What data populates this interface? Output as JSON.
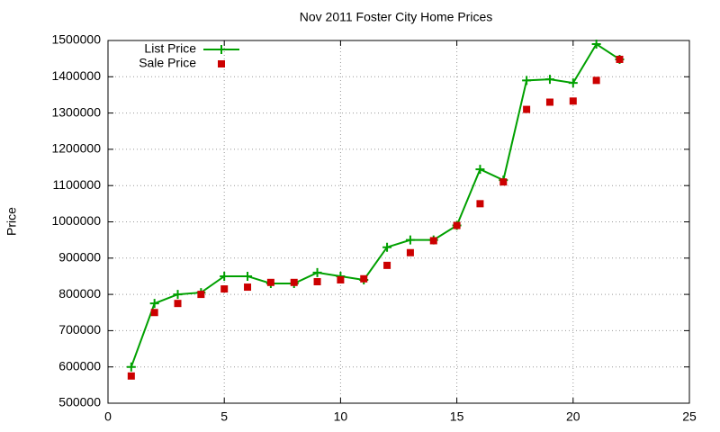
{
  "chart_data": {
    "type": "line",
    "title": "Nov 2011 Foster City Home Prices",
    "y_label": "Price",
    "xlim": [
      0,
      25
    ],
    "xticks": [
      0,
      5,
      10,
      15,
      20,
      25
    ],
    "ylim": [
      500000,
      1500000
    ],
    "yticks": [
      500000,
      600000,
      700000,
      800000,
      900000,
      1000000,
      1100000,
      1200000,
      1300000,
      1400000,
      1500000
    ],
    "grid": true,
    "legend": "top-left",
    "series": [
      {
        "name": "List Price",
        "color": "#00a000",
        "style": "linespoints",
        "x": [
          1,
          2,
          3,
          4,
          5,
          6,
          7,
          8,
          9,
          10,
          11,
          12,
          13,
          14,
          15,
          16,
          17,
          18,
          19,
          20,
          21,
          22
        ],
        "values": [
          600000,
          775000,
          800000,
          805000,
          850000,
          850000,
          830000,
          830000,
          860000,
          850000,
          840000,
          930000,
          950000,
          950000,
          990000,
          1145000,
          1115000,
          1390000,
          1393000,
          1383000,
          1490000,
          1448000
        ]
      },
      {
        "name": "Sale Price",
        "color": "#cc0000",
        "style": "points",
        "x": [
          1,
          2,
          3,
          4,
          5,
          6,
          7,
          8,
          9,
          10,
          11,
          12,
          13,
          14,
          15,
          16,
          17,
          18,
          19,
          20,
          21,
          22
        ],
        "values": [
          575000,
          750000,
          775000,
          800000,
          815000,
          820000,
          833000,
          833000,
          835000,
          840000,
          843000,
          880000,
          915000,
          948000,
          990000,
          1050000,
          1110000,
          1310000,
          1330000,
          1333000,
          1390000,
          1448000
        ]
      }
    ]
  }
}
